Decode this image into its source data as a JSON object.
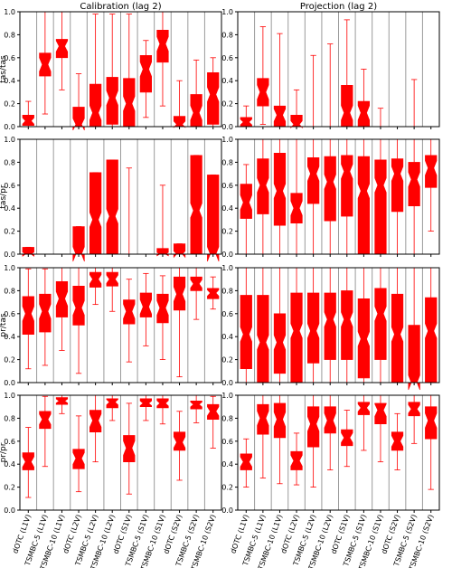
{
  "chart_data": [
    {
      "type": "box",
      "title": "Calibration (lag 2)",
      "ylabel": "tas/tas",
      "ylim": [
        0,
        1
      ],
      "yticks": [
        "0.0",
        "0.2",
        "0.4",
        "0.6",
        "0.8",
        "1.0"
      ],
      "categories": [
        "dOTC (L1V)",
        "TSMBC-5 (L1V)",
        "TSMBC-10 (L1V)",
        "dOTC (L2V)",
        "TSMBC-5 (L2V)",
        "TSMBC-10 (L2V)",
        "dOTC (S1V)",
        "TSMBC-5 (S1V)",
        "TSMBC-10 (S1V)",
        "dOTC (S2V)",
        "TSMBC-5 (S2V)",
        "TSMBC-10 (S2V)"
      ],
      "boxes": [
        {
          "min": 0.0,
          "q1": 0.01,
          "median": 0.05,
          "q3": 0.1,
          "max": 0.22
        },
        {
          "min": 0.11,
          "q1": 0.44,
          "median": 0.54,
          "q3": 0.64,
          "max": 1.0
        },
        {
          "min": 0.32,
          "q1": 0.6,
          "median": 0.7,
          "q3": 0.76,
          "max": 1.0
        },
        {
          "min": 0.0,
          "q1": 0.0,
          "median": 0.02,
          "q3": 0.17,
          "max": 0.46
        },
        {
          "min": 0.0,
          "q1": 0.0,
          "median": 0.12,
          "q3": 0.37,
          "max": 0.98
        },
        {
          "min": 0.0,
          "q1": 0.02,
          "median": 0.25,
          "q3": 0.43,
          "max": 0.98
        },
        {
          "min": 0.0,
          "q1": 0.0,
          "median": 0.2,
          "q3": 0.42,
          "max": 0.98
        },
        {
          "min": 0.08,
          "q1": 0.3,
          "median": 0.5,
          "q3": 0.62,
          "max": 0.75
        },
        {
          "min": 0.18,
          "q1": 0.56,
          "median": 0.72,
          "q3": 0.84,
          "max": 1.0
        },
        {
          "min": 0.0,
          "q1": 0.0,
          "median": 0.02,
          "q3": 0.09,
          "max": 0.4
        },
        {
          "min": 0.0,
          "q1": 0.0,
          "median": 0.12,
          "q3": 0.28,
          "max": 0.58
        },
        {
          "min": 0.0,
          "q1": 0.02,
          "median": 0.28,
          "q3": 0.47,
          "max": 0.6
        }
      ]
    },
    {
      "type": "box",
      "title": "Projection (lag 2)",
      "ylabel": "",
      "ylim": [
        0,
        1
      ],
      "yticks": [
        "0.0",
        "0.2",
        "0.4",
        "0.6",
        "0.8",
        "1.0"
      ],
      "categories": [
        "dOTC (L1V)",
        "TSMBC-5 (L1V)",
        "TSMBC-10 (L1V)",
        "dOTC (L2V)",
        "TSMBC-5 (L2V)",
        "TSMBC-10 (L2V)",
        "dOTC (S1V)",
        "TSMBC-5 (S1V)",
        "TSMBC-10 (S1V)",
        "dOTC (S2V)",
        "TSMBC-5 (S2V)",
        "TSMBC-10 (S2V)"
      ],
      "boxes": [
        {
          "min": 0.0,
          "q1": 0.0,
          "median": 0.04,
          "q3": 0.08,
          "max": 0.18
        },
        {
          "min": 0.02,
          "q1": 0.18,
          "median": 0.3,
          "q3": 0.42,
          "max": 0.87
        },
        {
          "min": 0.0,
          "q1": 0.0,
          "median": 0.1,
          "q3": 0.18,
          "max": 0.81
        },
        {
          "min": 0.0,
          "q1": 0.0,
          "median": 0.02,
          "q3": 0.1,
          "max": 0.32
        },
        {
          "min": 0.0,
          "q1": 0.0,
          "median": 0.0,
          "q3": 0.0,
          "max": 0.62
        },
        {
          "min": 0.0,
          "q1": 0.0,
          "median": 0.0,
          "q3": 0.0,
          "max": 0.72
        },
        {
          "min": 0.0,
          "q1": 0.0,
          "median": 0.12,
          "q3": 0.36,
          "max": 0.93
        },
        {
          "min": 0.0,
          "q1": 0.0,
          "median": 0.12,
          "q3": 0.22,
          "max": 0.5
        },
        {
          "min": 0.0,
          "q1": 0.0,
          "median": 0.0,
          "q3": 0.0,
          "max": 0.16
        },
        {
          "min": 0.0,
          "q1": 0.0,
          "median": 0.0,
          "q3": 0.0,
          "max": 0.0
        },
        {
          "min": 0.0,
          "q1": 0.0,
          "median": 0.0,
          "q3": 0.0,
          "max": 0.41
        },
        {
          "min": 0.0,
          "q1": 0.0,
          "median": 0.0,
          "q3": 0.0,
          "max": 0.0
        }
      ]
    },
    {
      "type": "box",
      "title": "",
      "ylabel": "tas/pr",
      "ylim": [
        0,
        1
      ],
      "yticks": [
        "0.0",
        "0.2",
        "0.4",
        "0.6",
        "0.8",
        "1.0"
      ],
      "categories": [
        "dOTC (L1V)",
        "TSMBC-5 (L1V)",
        "TSMBC-10 (L1V)",
        "dOTC (L2V)",
        "TSMBC-5 (L2V)",
        "TSMBC-10 (L2V)",
        "dOTC (S1V)",
        "TSMBC-5 (S1V)",
        "TSMBC-10 (S1V)",
        "dOTC (S2V)",
        "TSMBC-5 (S2V)",
        "TSMBC-10 (S2V)"
      ],
      "boxes": [
        {
          "min": 0.0,
          "q1": 0.0,
          "median": 0.0,
          "q3": 0.06,
          "max": 0.06
        },
        {
          "min": 0.0,
          "q1": 0.0,
          "median": 0.0,
          "q3": 0.0,
          "max": 0.0
        },
        {
          "min": 0.0,
          "q1": 0.0,
          "median": 0.0,
          "q3": 0.0,
          "max": 0.0
        },
        {
          "min": 0.0,
          "q1": 0.0,
          "median": 0.0,
          "q3": 0.24,
          "max": 0.24
        },
        {
          "min": 0.0,
          "q1": 0.0,
          "median": 0.3,
          "q3": 0.71,
          "max": 0.71
        },
        {
          "min": 0.0,
          "q1": 0.0,
          "median": 0.33,
          "q3": 0.82,
          "max": 0.82
        },
        {
          "min": 0.0,
          "q1": 0.0,
          "median": 0.0,
          "q3": 0.0,
          "max": 0.75
        },
        {
          "min": 0.0,
          "q1": 0.0,
          "median": 0.0,
          "q3": 0.0,
          "max": 0.0
        },
        {
          "min": 0.0,
          "q1": 0.0,
          "median": 0.0,
          "q3": 0.05,
          "max": 0.6
        },
        {
          "min": 0.0,
          "q1": 0.0,
          "median": 0.0,
          "q3": 0.09,
          "max": 0.09
        },
        {
          "min": 0.0,
          "q1": 0.0,
          "median": 0.38,
          "q3": 0.86,
          "max": 0.86
        },
        {
          "min": 0.0,
          "q1": 0.0,
          "median": 0.0,
          "q3": 0.69,
          "max": 0.69
        }
      ]
    },
    {
      "type": "box",
      "title": "",
      "ylabel": "",
      "ylim": [
        0,
        1
      ],
      "yticks": [
        "0.0",
        "0.2",
        "0.4",
        "0.6",
        "0.8",
        "1.0"
      ],
      "categories": [
        "dOTC (L1V)",
        "TSMBC-5 (L1V)",
        "TSMBC-10 (L1V)",
        "dOTC (L2V)",
        "TSMBC-5 (L2V)",
        "TSMBC-10 (L2V)",
        "dOTC (S1V)",
        "TSMBC-5 (S1V)",
        "TSMBC-10 (S1V)",
        "dOTC (S2V)",
        "TSMBC-5 (S2V)",
        "TSMBC-10 (S2V)"
      ],
      "boxes": [
        {
          "min": 0.0,
          "q1": 0.31,
          "median": 0.45,
          "q3": 0.61,
          "max": 0.78
        },
        {
          "min": 0.0,
          "q1": 0.35,
          "median": 0.6,
          "q3": 0.83,
          "max": 1.0
        },
        {
          "min": 0.0,
          "q1": 0.25,
          "median": 0.55,
          "q3": 0.88,
          "max": 1.0
        },
        {
          "min": 0.0,
          "q1": 0.27,
          "median": 0.4,
          "q3": 0.53,
          "max": 1.0
        },
        {
          "min": 0.0,
          "q1": 0.44,
          "median": 0.7,
          "q3": 0.84,
          "max": 1.0
        },
        {
          "min": 0.0,
          "q1": 0.29,
          "median": 0.63,
          "q3": 0.85,
          "max": 1.0
        },
        {
          "min": 0.0,
          "q1": 0.33,
          "median": 0.72,
          "q3": 0.86,
          "max": 1.0
        },
        {
          "min": 0.0,
          "q1": 0.0,
          "median": 0.55,
          "q3": 0.85,
          "max": 1.0
        },
        {
          "min": 0.0,
          "q1": 0.0,
          "median": 0.6,
          "q3": 0.82,
          "max": 1.0
        },
        {
          "min": 0.0,
          "q1": 0.37,
          "median": 0.7,
          "q3": 0.83,
          "max": 1.0
        },
        {
          "min": 0.0,
          "q1": 0.42,
          "median": 0.65,
          "q3": 0.8,
          "max": 1.0
        },
        {
          "min": 0.2,
          "q1": 0.58,
          "median": 0.75,
          "q3": 0.86,
          "max": 1.0
        }
      ]
    },
    {
      "type": "box",
      "title": "",
      "ylabel": "pr/tas",
      "ylim": [
        0,
        1
      ],
      "yticks": [
        "0.0",
        "0.2",
        "0.4",
        "0.6",
        "0.8",
        "1.0"
      ],
      "categories": [
        "dOTC (L1V)",
        "TSMBC-5 (L1V)",
        "TSMBC-10 (L1V)",
        "dOTC (L2V)",
        "TSMBC-5 (L2V)",
        "TSMBC-10 (L2V)",
        "dOTC (S1V)",
        "TSMBC-5 (S1V)",
        "TSMBC-10 (S1V)",
        "dOTC (S2V)",
        "TSMBC-5 (S2V)",
        "TSMBC-10 (S2V)"
      ],
      "boxes": [
        {
          "min": 0.12,
          "q1": 0.42,
          "median": 0.6,
          "q3": 0.75,
          "max": 0.99
        },
        {
          "min": 0.15,
          "q1": 0.44,
          "median": 0.62,
          "q3": 0.77,
          "max": 0.99
        },
        {
          "min": 0.28,
          "q1": 0.57,
          "median": 0.73,
          "q3": 0.88,
          "max": 1.0
        },
        {
          "min": 0.08,
          "q1": 0.5,
          "median": 0.65,
          "q3": 0.84,
          "max": 1.0
        },
        {
          "min": 0.68,
          "q1": 0.83,
          "median": 0.9,
          "q3": 0.96,
          "max": 1.0
        },
        {
          "min": 0.62,
          "q1": 0.84,
          "median": 0.9,
          "q3": 0.96,
          "max": 1.0
        },
        {
          "min": 0.18,
          "q1": 0.51,
          "median": 0.62,
          "q3": 0.72,
          "max": 0.9
        },
        {
          "min": 0.32,
          "q1": 0.57,
          "median": 0.66,
          "q3": 0.78,
          "max": 0.95
        },
        {
          "min": 0.2,
          "q1": 0.52,
          "median": 0.65,
          "q3": 0.77,
          "max": 0.93
        },
        {
          "min": 0.05,
          "q1": 0.63,
          "median": 0.77,
          "q3": 0.92,
          "max": 1.0
        },
        {
          "min": 0.55,
          "q1": 0.8,
          "median": 0.86,
          "q3": 0.92,
          "max": 1.0
        },
        {
          "min": 0.64,
          "q1": 0.73,
          "median": 0.78,
          "q3": 0.82,
          "max": 0.92
        }
      ]
    },
    {
      "type": "box",
      "title": "",
      "ylabel": "",
      "ylim": [
        0,
        1
      ],
      "yticks": [
        "0.0",
        "0.2",
        "0.4",
        "0.6",
        "0.8",
        "1.0"
      ],
      "categories": [
        "dOTC (L1V)",
        "TSMBC-5 (L1V)",
        "TSMBC-10 (L1V)",
        "dOTC (L2V)",
        "TSMBC-5 (L2V)",
        "TSMBC-10 (L2V)",
        "dOTC (S1V)",
        "TSMBC-5 (S1V)",
        "TSMBC-10 (S1V)",
        "dOTC (S2V)",
        "TSMBC-5 (S2V)",
        "TSMBC-10 (S2V)"
      ],
      "boxes": [
        {
          "min": 0.0,
          "q1": 0.12,
          "median": 0.42,
          "q3": 0.76,
          "max": 1.0
        },
        {
          "min": 0.0,
          "q1": 0.0,
          "median": 0.35,
          "q3": 0.76,
          "max": 1.0
        },
        {
          "min": 0.0,
          "q1": 0.08,
          "median": 0.35,
          "q3": 0.6,
          "max": 1.0
        },
        {
          "min": 0.0,
          "q1": 0.0,
          "median": 0.45,
          "q3": 0.78,
          "max": 1.0
        },
        {
          "min": 0.0,
          "q1": 0.17,
          "median": 0.45,
          "q3": 0.78,
          "max": 1.0
        },
        {
          "min": 0.0,
          "q1": 0.2,
          "median": 0.55,
          "q3": 0.78,
          "max": 1.0
        },
        {
          "min": 0.0,
          "q1": 0.2,
          "median": 0.55,
          "q3": 0.8,
          "max": 1.0
        },
        {
          "min": 0.0,
          "q1": 0.04,
          "median": 0.38,
          "q3": 0.73,
          "max": 1.0
        },
        {
          "min": 0.0,
          "q1": 0.2,
          "median": 0.6,
          "q3": 0.82,
          "max": 1.0
        },
        {
          "min": 0.0,
          "q1": 0.0,
          "median": 0.42,
          "q3": 0.77,
          "max": 1.0
        },
        {
          "min": 0.0,
          "q1": 0.0,
          "median": 0.0,
          "q3": 0.5,
          "max": 1.0
        },
        {
          "min": 0.0,
          "q1": 0.0,
          "median": 0.45,
          "q3": 0.74,
          "max": 1.0
        }
      ]
    },
    {
      "type": "box",
      "title": "",
      "ylabel": "pr/pr",
      "ylim": [
        0,
        1
      ],
      "yticks": [
        "0.0",
        "0.2",
        "0.4",
        "0.6",
        "0.8",
        "1.0"
      ],
      "categories": [
        "dOTC (L1V)",
        "TSMBC-5 (L1V)",
        "TSMBC-10 (L1V)",
        "dOTC (L2V)",
        "TSMBC-5 (L2V)",
        "TSMBC-10 (L2V)",
        "dOTC (S1V)",
        "TSMBC-5 (S1V)",
        "TSMBC-10 (S1V)",
        "dOTC (S2V)",
        "TSMBC-5 (S2V)",
        "TSMBC-10 (S2V)"
      ],
      "boxes": [
        {
          "min": 0.11,
          "q1": 0.35,
          "median": 0.42,
          "q3": 0.5,
          "max": 0.72
        },
        {
          "min": 0.38,
          "q1": 0.71,
          "median": 0.79,
          "q3": 0.86,
          "max": 0.99
        },
        {
          "min": 0.84,
          "q1": 0.92,
          "median": 0.95,
          "q3": 0.98,
          "max": 1.0
        },
        {
          "min": 0.16,
          "q1": 0.36,
          "median": 0.45,
          "q3": 0.53,
          "max": 0.82
        },
        {
          "min": 0.42,
          "q1": 0.68,
          "median": 0.78,
          "q3": 0.87,
          "max": 1.0
        },
        {
          "min": 0.78,
          "q1": 0.89,
          "median": 0.94,
          "q3": 0.97,
          "max": 1.0
        },
        {
          "min": 0.14,
          "q1": 0.42,
          "median": 0.54,
          "q3": 0.65,
          "max": 0.93
        },
        {
          "min": 0.78,
          "q1": 0.9,
          "median": 0.93,
          "q3": 0.97,
          "max": 1.0
        },
        {
          "min": 0.75,
          "q1": 0.89,
          "median": 0.93,
          "q3": 0.97,
          "max": 1.0
        },
        {
          "min": 0.26,
          "q1": 0.52,
          "median": 0.59,
          "q3": 0.68,
          "max": 0.86
        },
        {
          "min": 0.76,
          "q1": 0.88,
          "median": 0.92,
          "q3": 0.95,
          "max": 1.0
        },
        {
          "min": 0.54,
          "q1": 0.79,
          "median": 0.86,
          "q3": 0.92,
          "max": 0.99
        }
      ]
    },
    {
      "type": "box",
      "title": "",
      "ylabel": "",
      "ylim": [
        0,
        1
      ],
      "yticks": [
        "0.0",
        "0.2",
        "0.4",
        "0.6",
        "0.8",
        "1.0"
      ],
      "categories": [
        "dOTC (L1V)",
        "TSMBC-5 (L1V)",
        "TSMBC-10 (L1V)",
        "dOTC (L2V)",
        "TSMBC-5 (L2V)",
        "TSMBC-10 (L2V)",
        "dOTC (S1V)",
        "TSMBC-5 (S1V)",
        "TSMBC-10 (S1V)",
        "dOTC (S2V)",
        "TSMBC-5 (S2V)",
        "TSMBC-10 (S2V)"
      ],
      "boxes": [
        {
          "min": 0.2,
          "q1": 0.35,
          "median": 0.42,
          "q3": 0.49,
          "max": 0.62
        },
        {
          "min": 0.28,
          "q1": 0.66,
          "median": 0.8,
          "q3": 0.92,
          "max": 1.0
        },
        {
          "min": 0.23,
          "q1": 0.63,
          "median": 0.79,
          "q3": 0.93,
          "max": 1.0
        },
        {
          "min": 0.22,
          "q1": 0.35,
          "median": 0.43,
          "q3": 0.51,
          "max": 0.67
        },
        {
          "min": 0.2,
          "q1": 0.55,
          "median": 0.75,
          "q3": 0.9,
          "max": 1.0
        },
        {
          "min": 0.35,
          "q1": 0.67,
          "median": 0.78,
          "q3": 0.9,
          "max": 1.0
        },
        {
          "min": 0.38,
          "q1": 0.56,
          "median": 0.63,
          "q3": 0.7,
          "max": 0.87
        },
        {
          "min": 0.52,
          "q1": 0.83,
          "median": 0.89,
          "q3": 0.94,
          "max": 1.0
        },
        {
          "min": 0.42,
          "q1": 0.75,
          "median": 0.87,
          "q3": 0.93,
          "max": 1.0
        },
        {
          "min": 0.35,
          "q1": 0.52,
          "median": 0.6,
          "q3": 0.68,
          "max": 0.84
        },
        {
          "min": 0.58,
          "q1": 0.82,
          "median": 0.88,
          "q3": 0.94,
          "max": 1.0
        },
        {
          "min": 0.18,
          "q1": 0.62,
          "median": 0.78,
          "q3": 0.9,
          "max": 1.0
        }
      ]
    }
  ],
  "colors": {
    "box": "#ff0000",
    "separator": "#9a9a9a",
    "axes": "#000000"
  }
}
